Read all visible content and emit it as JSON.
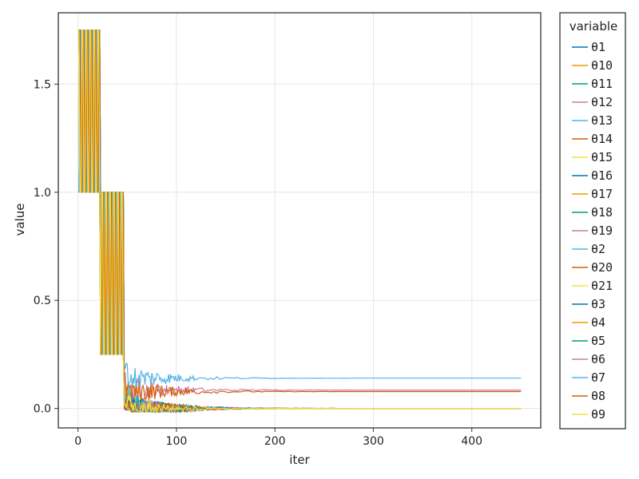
{
  "chart_data": {
    "type": "line",
    "xlabel": "iter",
    "ylabel": "value",
    "xlim": [
      -20,
      470
    ],
    "ylim": [
      -0.09,
      1.83
    ],
    "x_ticks": [
      0,
      100,
      200,
      300,
      400
    ],
    "y_ticks": [
      0.0,
      0.5,
      1.0,
      1.5
    ],
    "x_tick_labels": [
      "0",
      "100",
      "200",
      "300",
      "400"
    ],
    "y_tick_labels": [
      "0.0",
      "0.5",
      "1.0",
      "1.5"
    ],
    "grid": true,
    "legend": {
      "title": "variable",
      "placement": "right-outside"
    },
    "series": [
      {
        "name": "θ1",
        "color": "#0072b2",
        "final": 0.0
      },
      {
        "name": "θ10",
        "color": "#e69f00",
        "final": 0.0
      },
      {
        "name": "θ11",
        "color": "#009e73",
        "final": 0.0
      },
      {
        "name": "θ12",
        "color": "#cc79a7",
        "final": 0.085
      },
      {
        "name": "θ13",
        "color": "#56b4e9",
        "final": 0.0
      },
      {
        "name": "θ14",
        "color": "#d55e00",
        "final": 0.078
      },
      {
        "name": "θ15",
        "color": "#f0e442",
        "final": 0.0
      },
      {
        "name": "θ16",
        "color": "#0072b2",
        "final": 0.0
      },
      {
        "name": "θ17",
        "color": "#e69f00",
        "final": 0.0
      },
      {
        "name": "θ18",
        "color": "#009e73",
        "final": 0.0
      },
      {
        "name": "θ19",
        "color": "#cc79a7",
        "final": 0.0
      },
      {
        "name": "θ2",
        "color": "#56b4e9",
        "final": 0.14
      },
      {
        "name": "θ20",
        "color": "#d55e00",
        "final": 0.0
      },
      {
        "name": "θ21",
        "color": "#f0e442",
        "final": 0.0
      },
      {
        "name": "θ3",
        "color": "#0072b2",
        "final": 0.0
      },
      {
        "name": "θ4",
        "color": "#e69f00",
        "final": 0.0
      },
      {
        "name": "θ5",
        "color": "#009e73",
        "final": 0.0
      },
      {
        "name": "θ6",
        "color": "#cc79a7",
        "final": 0.0
      },
      {
        "name": "θ7",
        "color": "#56b4e9",
        "final": 0.0
      },
      {
        "name": "θ8",
        "color": "#d55e00",
        "final": 0.0
      },
      {
        "name": "θ9",
        "color": "#f0e442",
        "final": 0.0
      }
    ],
    "phases": {
      "iter_max": 450,
      "high_value": 1.75,
      "base_value": 1.0,
      "mid_value": 1.0,
      "low_value": 0.25,
      "phase1_end": 22,
      "phase2_end": 46
    }
  }
}
